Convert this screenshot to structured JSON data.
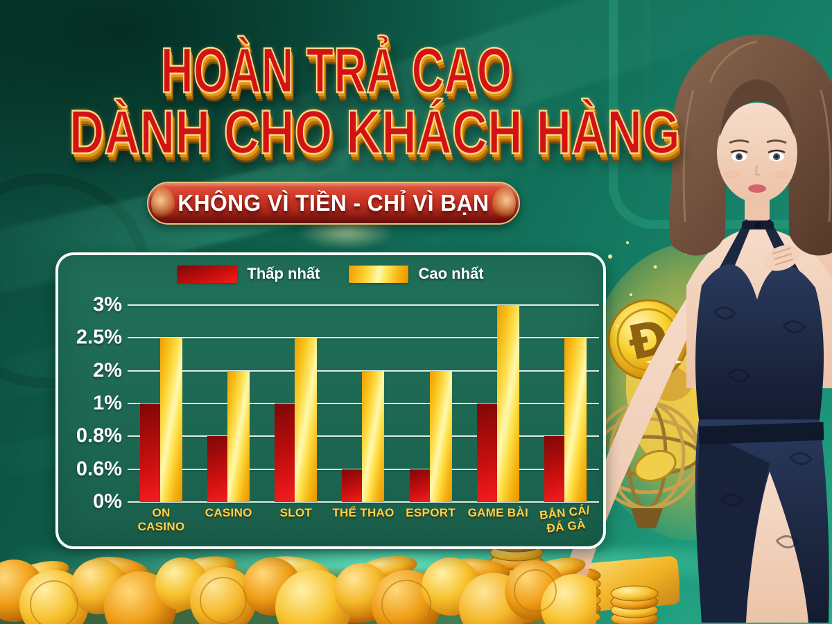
{
  "header": {
    "title_line1": "HOÀN TRẢ CAO",
    "title_line2": "DÀNH CHO KHÁCH HÀNG",
    "subtitle": "KHÔNG VÌ TIỀN - CHỈ VÌ BẠN"
  },
  "chart_data": {
    "type": "bar",
    "title": "",
    "legend_position": "top",
    "grid": true,
    "y_axis_note": "non-linear ordinal scale; tick levels evenly spaced",
    "y_ticks": [
      "0%",
      "0.6%",
      "0.8%",
      "1%",
      "2%",
      "2.5%",
      "3%"
    ],
    "categories": [
      {
        "label": "ON CASINO",
        "lines": [
          "ON",
          "CASINO"
        ]
      },
      {
        "label": "CASINO",
        "lines": [
          "CASINO"
        ]
      },
      {
        "label": "SLOT",
        "lines": [
          "SLOT"
        ]
      },
      {
        "label": "THỂ THAO",
        "lines": [
          "THỂ THAO"
        ]
      },
      {
        "label": "ESPORT",
        "lines": [
          "ESPORT"
        ]
      },
      {
        "label": "GAME BÀI",
        "lines": [
          "GAME BÀI"
        ]
      },
      {
        "label": "BẮN CÁ/ ĐÁ GÀ",
        "lines": [
          "BẮN CÁ/",
          "ĐÁ GÀ"
        ],
        "tilt": -6
      }
    ],
    "series": [
      {
        "name": "Thấp nhất",
        "color": "#cf1010",
        "values": [
          "1%",
          "0.8%",
          "1%",
          "0.6%",
          "0.6%",
          "1%",
          "0.8%"
        ]
      },
      {
        "name": "Cao nhất",
        "color": "#ffd52e",
        "values": [
          "2.5%",
          "2%",
          "2.5%",
          "2%",
          "2%",
          "3%",
          "2.5%"
        ]
      }
    ]
  },
  "decor": {
    "coin_symbol": "Đ"
  },
  "colors": {
    "background_teal": "#12705a",
    "card_green": "#1d6752",
    "title_red": "#d31313",
    "title_gold_outline": "#ffd98a",
    "ribbon_red": "#cc3526",
    "label_gold": "#ffd24a",
    "bar_min_red": "#cf1010",
    "bar_max_yellow": "#ffd52e",
    "coin_gold": "#f7c12c"
  }
}
